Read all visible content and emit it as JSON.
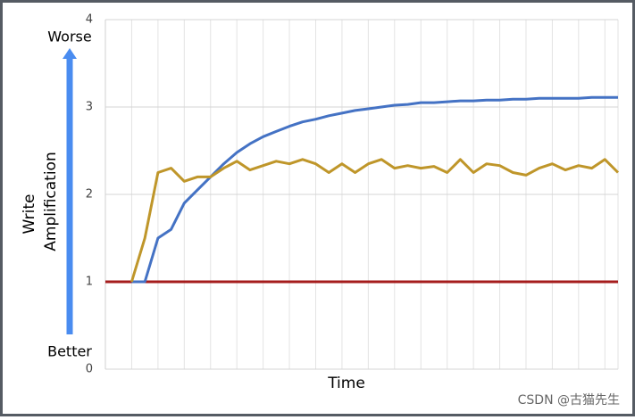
{
  "chart_data": {
    "type": "line",
    "x_label": "Time",
    "y_label_lines": [
      "Write",
      "Amplification"
    ],
    "annotations": {
      "top": "Worse",
      "bottom": "Better"
    },
    "watermark": "CSDN @古猫先生",
    "categories": [
      null,
      null,
      null,
      null,
      null,
      null,
      null,
      null,
      null,
      null,
      null,
      null,
      null,
      null,
      null,
      null,
      null,
      null,
      null,
      null,
      null,
      null,
      null,
      null,
      null,
      null,
      null,
      null,
      null,
      null,
      null,
      null,
      null,
      null,
      null,
      null,
      null,
      null,
      null,
      null
    ],
    "series": [
      {
        "name": null,
        "color": "#a51c1c",
        "values": [
          1,
          1,
          1,
          1,
          1,
          1,
          1,
          1,
          1,
          1,
          1,
          1,
          1,
          1,
          1,
          1,
          1,
          1,
          1,
          1,
          1,
          1,
          1,
          1,
          1,
          1,
          1,
          1,
          1,
          1,
          1,
          1,
          1,
          1,
          1,
          1,
          1,
          1,
          1,
          1
        ]
      },
      {
        "name": null,
        "color": "#4472c4",
        "values": [
          null,
          null,
          1.0,
          1.0,
          1.5,
          1.6,
          1.9,
          2.05,
          2.2,
          2.35,
          2.48,
          2.58,
          2.66,
          2.72,
          2.78,
          2.83,
          2.86,
          2.9,
          2.93,
          2.96,
          2.98,
          3.0,
          3.02,
          3.03,
          3.05,
          3.05,
          3.06,
          3.07,
          3.07,
          3.08,
          3.08,
          3.09,
          3.09,
          3.1,
          3.1,
          3.1,
          3.1,
          3.11,
          3.11,
          3.11
        ]
      },
      {
        "name": null,
        "color": "#bf962a",
        "values": [
          null,
          null,
          1.0,
          1.5,
          2.25,
          2.3,
          2.15,
          2.2,
          2.2,
          2.3,
          2.38,
          2.28,
          2.33,
          2.38,
          2.35,
          2.4,
          2.35,
          2.25,
          2.35,
          2.25,
          2.35,
          2.4,
          2.3,
          2.33,
          2.3,
          2.32,
          2.25,
          2.4,
          2.25,
          2.35,
          2.33,
          2.25,
          2.22,
          2.3,
          2.35,
          2.28,
          2.33,
          2.3,
          2.4,
          2.25
        ]
      }
    ],
    "ylim": [
      0,
      4
    ],
    "yticks": [
      0,
      1,
      2,
      3,
      4
    ],
    "grid": true
  }
}
